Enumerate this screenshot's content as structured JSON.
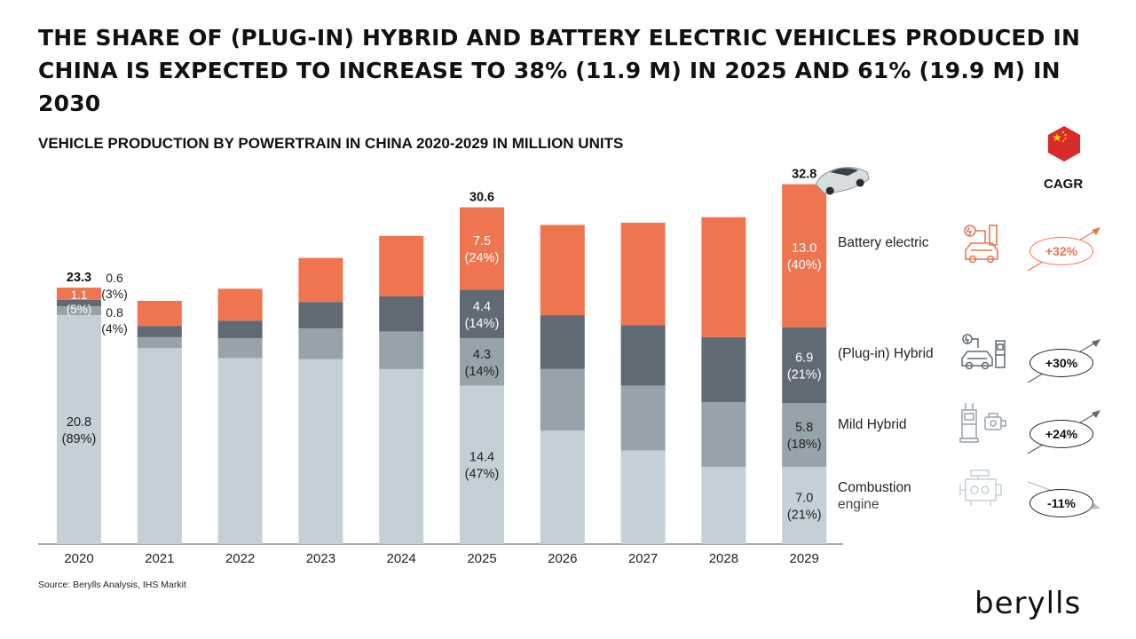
{
  "title": "THE SHARE OF (PLUG-IN) HYBRID AND BATTERY ELECTRIC VEHICLES PRODUCED IN CHINA IS EXPECTED TO INCREASE TO 38% (11.9 M) IN 2025 AND 61% (19.9 M) IN 2030",
  "subtitle": "VEHICLE PRODUCTION BY POWERTRAIN IN CHINA 2020-2029 IN MILLION UNITS",
  "source": "Source: Berylls Analysis, IHS Markit",
  "logo": "berylls",
  "cagr_label": "CAGR",
  "legend": [
    {
      "key": "bev",
      "label": "Battery electric",
      "sub": "",
      "cagr": "+32%",
      "trend": "up",
      "icon": "ev-charger-icon",
      "color": "#ef7550"
    },
    {
      "key": "phev",
      "label": "(Plug-in) Hybrid",
      "sub": "",
      "cagr": "+30%",
      "trend": "up",
      "icon": "hybrid-car-icon",
      "color": "#5f6a74"
    },
    {
      "key": "mhev",
      "label": "Mild Hybrid",
      "sub": "",
      "cagr": "+24%",
      "trend": "up",
      "icon": "fuel-pump-icon",
      "color": "#97a3ab"
    },
    {
      "key": "ice",
      "label": "Combustion",
      "sub": "engine",
      "cagr": "-11%",
      "trend": "down",
      "icon": "engine-icon",
      "color": "#c3d0d7"
    }
  ],
  "chart_data": {
    "type": "bar",
    "stacked": true,
    "title": "VEHICLE PRODUCTION BY POWERTRAIN IN CHINA 2020-2029 IN MILLION UNITS",
    "categories": [
      "2020",
      "2021",
      "2022",
      "2023",
      "2024",
      "2025",
      "2026",
      "2027",
      "2028",
      "2029"
    ],
    "unit": "million units",
    "ylim": [
      0,
      33
    ],
    "series": [
      {
        "name": "Combustion engine",
        "values": [
          20.8,
          17.8,
          16.9,
          16.8,
          15.9,
          14.4,
          10.3,
          8.5,
          7.0,
          7.0
        ]
      },
      {
        "name": "Mild Hybrid",
        "values": [
          0.8,
          1.0,
          1.8,
          2.8,
          3.4,
          4.3,
          5.6,
          5.9,
          5.9,
          5.8
        ]
      },
      {
        "name": "(Plug-in) Hybrid",
        "values": [
          0.6,
          1.0,
          1.6,
          2.4,
          3.2,
          4.4,
          4.9,
          5.5,
          5.9,
          6.9
        ]
      },
      {
        "name": "Battery electric",
        "values": [
          1.1,
          2.3,
          2.9,
          4.0,
          5.5,
          7.5,
          8.2,
          9.3,
          10.9,
          13.0
        ]
      }
    ],
    "totals_labeled": {
      "2020": "23.3",
      "2025": "30.6",
      "2029": "32.8"
    },
    "labels": {
      "2020": {
        "Combustion engine": [
          "20.8",
          "(89%)"
        ],
        "Mild Hybrid": [
          "0.8",
          "(4%)"
        ],
        "(Plug-in) Hybrid": [
          "0.6",
          "(3%)"
        ],
        "Battery electric": [
          "1.1",
          "(5%)"
        ]
      },
      "2025": {
        "Combustion engine": [
          "14.4",
          "(47%)"
        ],
        "Mild Hybrid": [
          "4.3",
          "(14%)"
        ],
        "(Plug-in) Hybrid": [
          "4.4",
          "(14%)"
        ],
        "Battery electric": [
          "7.5",
          "(24%)"
        ]
      },
      "2029": {
        "Combustion engine": [
          "7.0",
          "(21%)"
        ],
        "Mild Hybrid": [
          "5.8",
          "(18%)"
        ],
        "(Plug-in) Hybrid": [
          "6.9",
          "(21%)"
        ],
        "Battery electric": [
          "13.0",
          "(40%)"
        ]
      }
    }
  }
}
